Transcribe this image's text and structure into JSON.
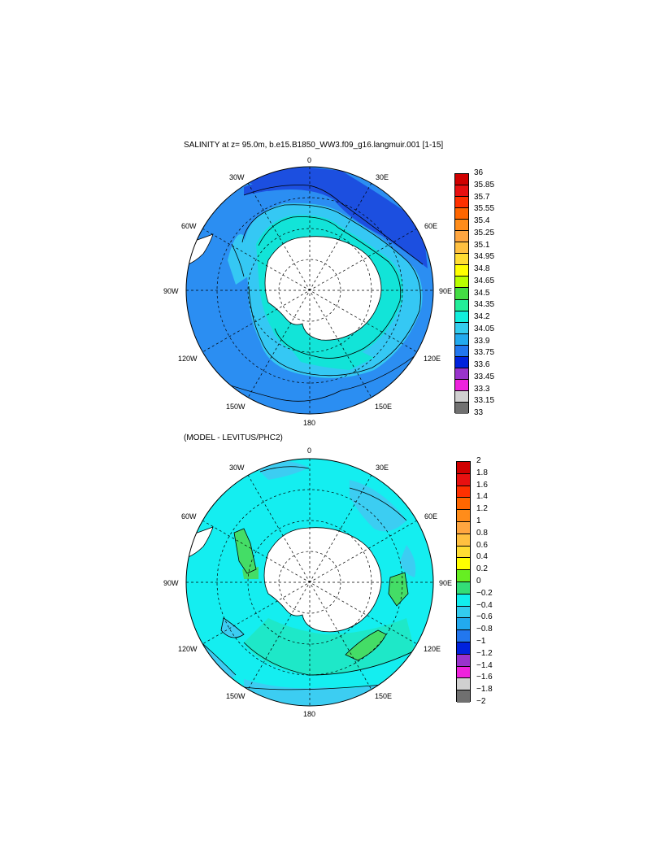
{
  "plot1": {
    "title": "SALINITY at z=  95.0m, b.e15.B1850_WW3.f09_g16.langmuir.001 [1-15]",
    "lon_labels": [
      "0",
      "30E",
      "60E",
      "90E",
      "120E",
      "150E",
      "180",
      "150W",
      "120W",
      "90W",
      "60W",
      "30W"
    ],
    "colorbar_labels": [
      "36",
      "35.85",
      "35.7",
      "35.55",
      "35.4",
      "35.25",
      "35.1",
      "34.95",
      "34.8",
      "34.65",
      "34.5",
      "34.35",
      "34.2",
      "34.05",
      "33.9",
      "33.75",
      "33.6",
      "33.45",
      "33.3",
      "33.15",
      "33"
    ],
    "colorbar_colors": [
      "#d00000",
      "#e81010",
      "#ff3000",
      "#ff6600",
      "#ff8c1a",
      "#ffa640",
      "#ffc040",
      "#ffdd33",
      "#ffff00",
      "#b8ff00",
      "#44dd44",
      "#22ee99",
      "#11eedd",
      "#33ccee",
      "#22aaee",
      "#2277ee",
      "#0022dd",
      "#9933cc",
      "#ee22dd",
      "#d0d0d0"
    ],
    "bottom_color": "#707070"
  },
  "plot2": {
    "title": "(MODEL - LEVITUS/PHC2)",
    "lon_labels": [
      "0",
      "30E",
      "60E",
      "90E",
      "120E",
      "150E",
      "180",
      "150W",
      "120W",
      "90W",
      "60W",
      "30W"
    ],
    "colorbar_labels": [
      "2",
      "1.8",
      "1.6",
      "1.4",
      "1.2",
      "1",
      "0.8",
      "0.6",
      "0.4",
      "0.2",
      "0",
      "−0.2",
      "−0.4",
      "−0.6",
      "−0.8",
      "−1",
      "−1.2",
      "−1.4",
      "−1.6",
      "−1.8",
      "−2"
    ],
    "colorbar_colors": [
      "#d00000",
      "#e81010",
      "#ff3000",
      "#ff6600",
      "#ff8c1a",
      "#ffa640",
      "#ffc040",
      "#ffdd33",
      "#ffff00",
      "#66ee22",
      "#33dd77",
      "#11eeee",
      "#33ccee",
      "#22aaee",
      "#2277ee",
      "#0022dd",
      "#9933cc",
      "#ee22dd",
      "#d0d0d0",
      "#707070"
    ]
  }
}
